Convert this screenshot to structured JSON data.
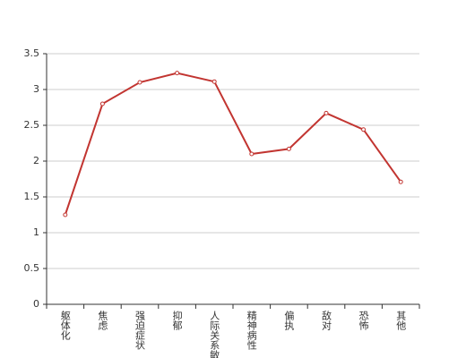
{
  "chart_data": {
    "type": "line",
    "categories": [
      "躯体化",
      "焦虑",
      "强迫症状",
      "抑郁",
      "人际关系敏感",
      "精神病性",
      "偏执",
      "敌对",
      "恐怖",
      "其他"
    ],
    "values": [
      1.25,
      2.8,
      3.1,
      3.23,
      3.11,
      2.1,
      2.17,
      2.67,
      2.44,
      1.71
    ],
    "color": "#c23531",
    "ylim": [
      0,
      3.5
    ],
    "yticks": [
      0,
      0.5,
      1,
      1.5,
      2,
      2.5,
      3,
      3.5
    ],
    "grid": true
  }
}
